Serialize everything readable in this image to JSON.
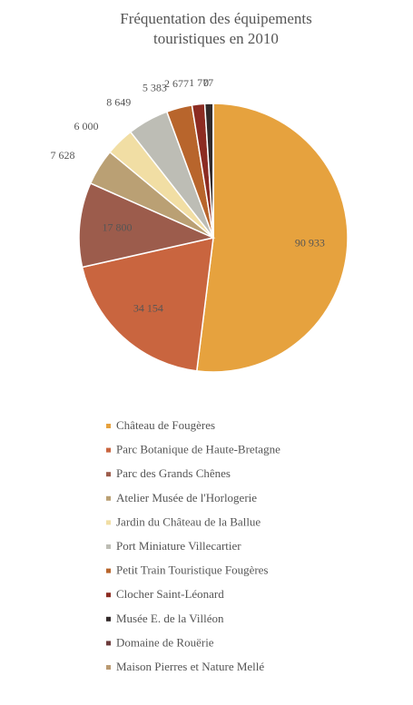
{
  "chart_data": {
    "type": "pie",
    "title": [
      "Fréquentation des équipements",
      "touristiques en  2010"
    ],
    "categories": [
      "Château de Fougères",
      "Parc Botanique de Haute-Bretagne",
      "Parc des Grands Chênes",
      "Atelier Musée de l'Horlogerie",
      "Jardin du Château de la Ballue",
      "Port Miniature Villecartier",
      "Petit Train Touristique Fougères",
      "Clocher Saint-Léonard",
      "Musée E. de la Villéon",
      "Domaine de Rouërie",
      "Maison Pierres et Nature Mellé"
    ],
    "values": [
      90933,
      34154,
      17800,
      7628,
      6000,
      8649,
      5383,
      2677,
      1777,
      0,
      0
    ],
    "value_labels": [
      "90 933",
      "34 154",
      "17 800",
      "7 628",
      "6 000",
      "8 649",
      "5 383",
      "2 677",
      "1 777",
      "0",
      "0"
    ],
    "colors": [
      "#e6a23e",
      "#c9653f",
      "#9c5c4c",
      "#baa074",
      "#f1dea4",
      "#bdbdb5",
      "#b8652c",
      "#8c2c22",
      "#332a2a",
      "#6c3c3c",
      "#ba9a72"
    ]
  }
}
